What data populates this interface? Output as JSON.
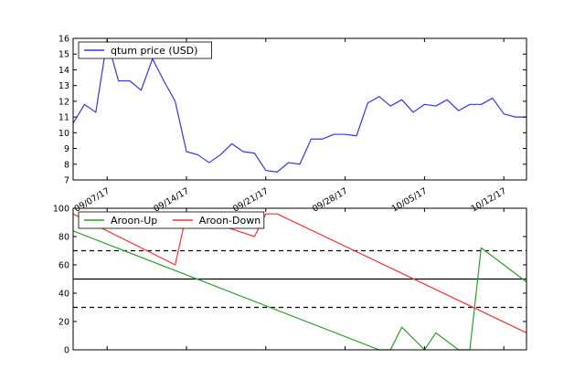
{
  "chart_data": [
    {
      "type": "line",
      "ylim": [
        7,
        16
      ],
      "xlim": [
        "2017-09-04",
        "2017-10-14"
      ],
      "yticks": [
        7,
        8,
        9,
        10,
        11,
        12,
        13,
        14,
        15,
        16
      ],
      "xticks": [
        "2017-09-07",
        "2017-09-14",
        "2017-09-21",
        "2017-09-28",
        "2017-10-05",
        "2017-10-12"
      ],
      "xtick_labels": [
        "09/07/17",
        "09/14/17",
        "09/21/17",
        "09/28/17",
        "10/05/17",
        "10/12/17"
      ],
      "legend_position": "top-left",
      "grid": false,
      "series": [
        {
          "name": "qtum price (USD)",
          "color": "#3333ff",
          "x": [
            "2017-09-04",
            "2017-09-05",
            "2017-09-06",
            "2017-09-07",
            "2017-09-08",
            "2017-09-09",
            "2017-09-10",
            "2017-09-11",
            "2017-09-12",
            "2017-09-13",
            "2017-09-14",
            "2017-09-15",
            "2017-09-16",
            "2017-09-17",
            "2017-09-18",
            "2017-09-19",
            "2017-09-20",
            "2017-09-21",
            "2017-09-22",
            "2017-09-23",
            "2017-09-24",
            "2017-09-25",
            "2017-09-26",
            "2017-09-27",
            "2017-09-28",
            "2017-09-29",
            "2017-09-30",
            "2017-10-01",
            "2017-10-02",
            "2017-10-03",
            "2017-10-04",
            "2017-10-05",
            "2017-10-06",
            "2017-10-07",
            "2017-10-08",
            "2017-10-09",
            "2017-10-10",
            "2017-10-11",
            "2017-10-12",
            "2017-10-13",
            "2017-10-14"
          ],
          "values": [
            10.6,
            11.8,
            11.3,
            15.9,
            13.3,
            13.3,
            12.7,
            14.7,
            13.3,
            12.0,
            8.8,
            8.6,
            8.1,
            8.6,
            9.3,
            8.8,
            8.7,
            7.6,
            7.5,
            8.1,
            8.0,
            9.6,
            9.6,
            9.9,
            9.9,
            9.8,
            11.9,
            12.3,
            11.7,
            12.1,
            11.3,
            11.8,
            11.7,
            12.1,
            11.4,
            11.8,
            11.8,
            12.2,
            11.2,
            11.0,
            11.0
          ]
        }
      ]
    },
    {
      "type": "line",
      "ylim": [
        0,
        100
      ],
      "xlim": [
        "2017-09-04",
        "2017-10-14"
      ],
      "yticks": [
        0,
        20,
        40,
        60,
        80,
        100
      ],
      "legend_position": "top-left",
      "grid": false,
      "reference_lines": [
        {
          "y": 70,
          "style": "dashed",
          "color": "#000000"
        },
        {
          "y": 50,
          "style": "solid",
          "color": "#000000"
        },
        {
          "y": 30,
          "style": "dashed",
          "color": "#000000"
        }
      ],
      "series": [
        {
          "name": "Aroon-Up",
          "color": "#2ca02c",
          "x": [
            "2017-09-04",
            "2017-10-01",
            "2017-10-02",
            "2017-10-03",
            "2017-10-05",
            "2017-10-06",
            "2017-10-08",
            "2017-10-09",
            "2017-10-10",
            "2017-10-14"
          ],
          "values": [
            84,
            0,
            0,
            16,
            0,
            12,
            0,
            0,
            72,
            48
          ]
        },
        {
          "name": "Aroon-Down",
          "color": "#ff3333",
          "x": [
            "2017-09-04",
            "2017-09-13",
            "2017-09-14",
            "2017-09-20",
            "2017-09-21",
            "2017-09-22",
            "2017-10-14"
          ],
          "values": [
            96,
            60,
            96,
            80,
            96,
            96,
            12
          ]
        }
      ]
    }
  ]
}
